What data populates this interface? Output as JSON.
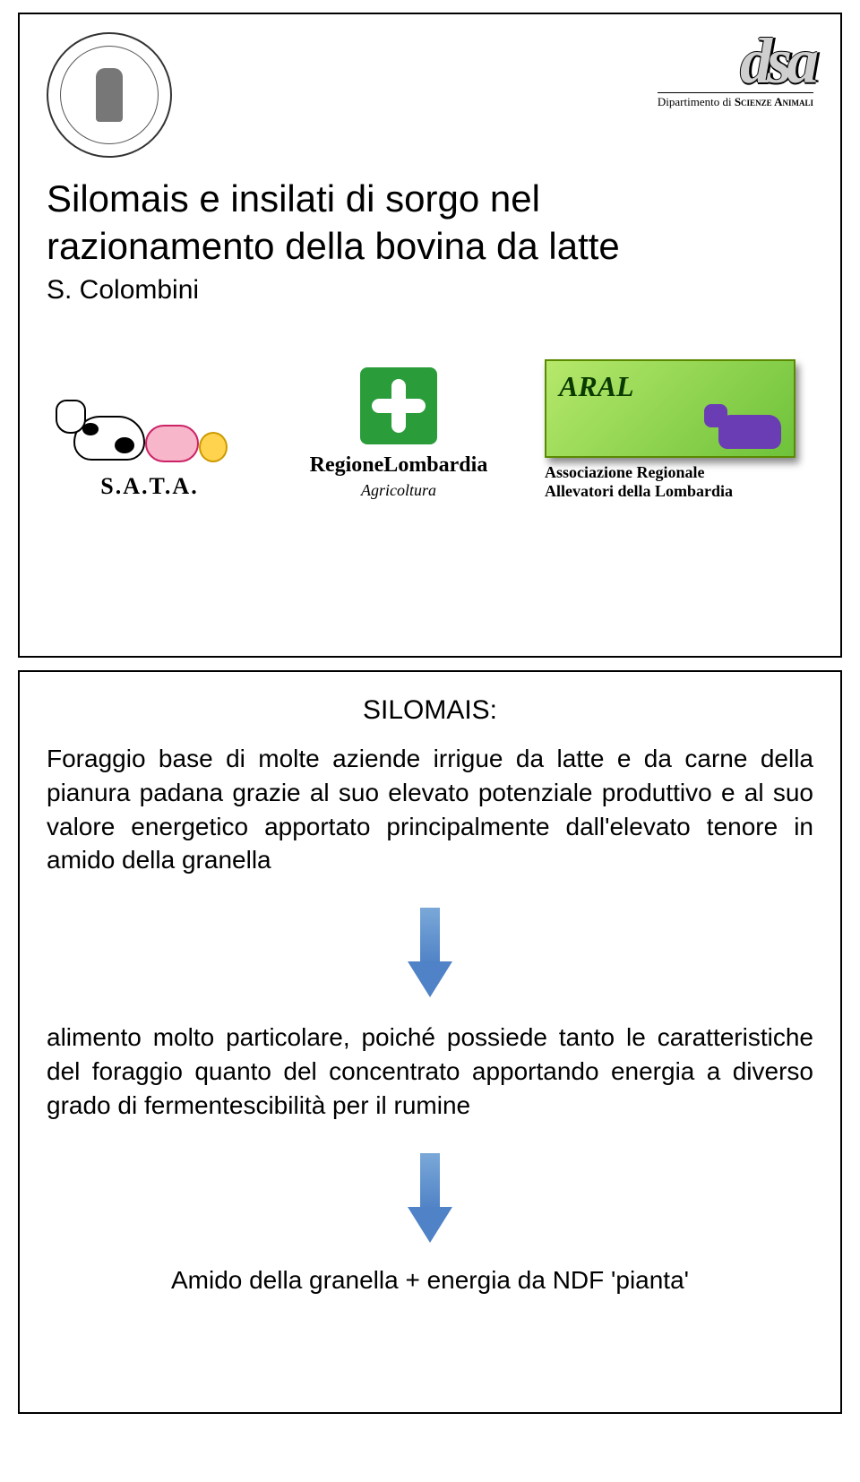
{
  "slide1": {
    "dsa_letters": "dsa",
    "dsa_dept_prefix": "Dipartimento di ",
    "dsa_dept_bold": "Scienze Animali",
    "title_line1": "Silomais e insilati di sorgo nel",
    "title_line2": "razionamento della bovina da latte",
    "author": "S. Colombini",
    "sata_label": "S.A.T.A.",
    "regione_name": "RegioneLombardia",
    "regione_sub": "Agricoltura",
    "aral_title": "ARAL",
    "aral_desc_l1": "Associazione Regionale",
    "aral_desc_l2": "Allevatori della Lombardia"
  },
  "slide2": {
    "heading": "SILOMAIS:",
    "para1": "Foraggio base di molte aziende irrigue da latte e da carne della pianura padana grazie al suo elevato potenziale produttivo e al suo valore energetico apportato principalmente dall'elevato tenore in amido della granella",
    "para2": "alimento molto particolare, poiché possiede tanto le caratteristiche del foraggio quanto del concentrato apportando energia a diverso grado di fermentescibilità per il rumine",
    "final": "Amido della granella + energia da NDF 'pianta'"
  },
  "colors": {
    "regione_green": "#2a9d3a",
    "aral_green_light": "#b6e86b",
    "aral_green_dark": "#6ec23a",
    "arrow_blue_light": "#7aa8d8",
    "arrow_blue_dark": "#4f82c6",
    "pig_pink": "#f7b6c9",
    "chick_yellow": "#ffd34d",
    "aral_cow_purple": "#6a3db5"
  }
}
